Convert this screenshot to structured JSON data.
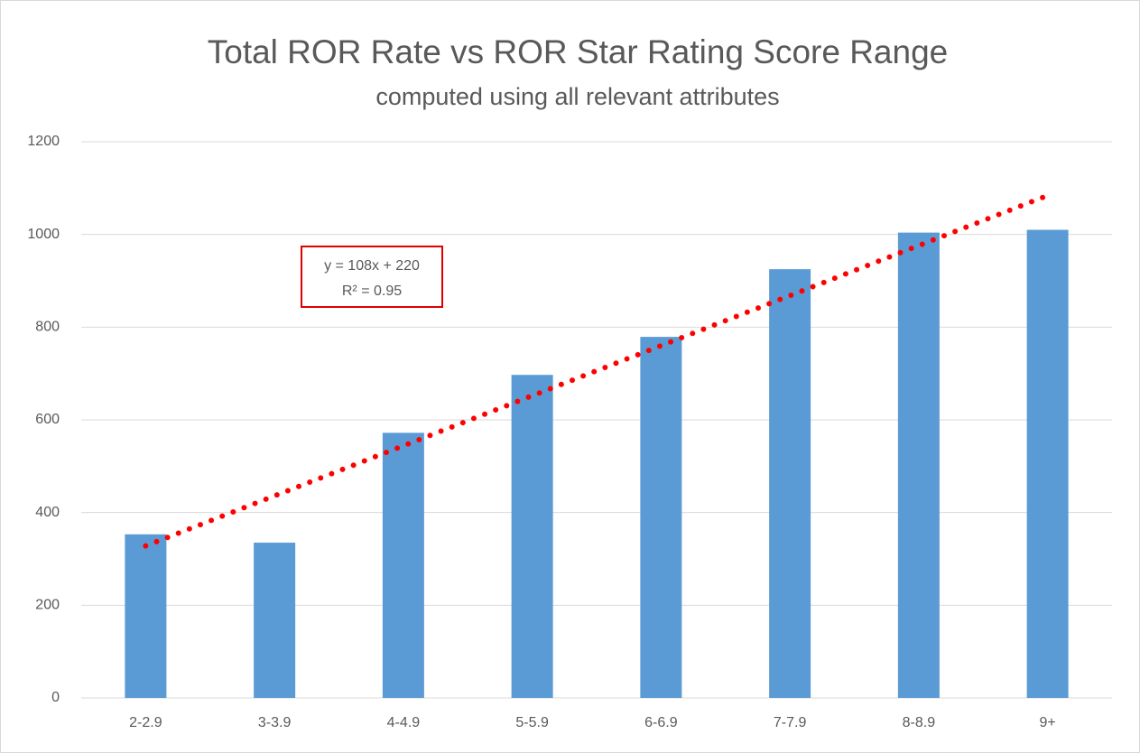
{
  "chart_data": {
    "type": "bar",
    "title": "Total ROR Rate vs ROR Star Rating Score Range",
    "subtitle": "computed using all relevant attributes",
    "categories": [
      "2-2.9",
      "3-3.9",
      "4-4.9",
      "5-5.9",
      "6-6.9",
      "7-7.9",
      "8-8.9",
      "9+"
    ],
    "values": [
      353,
      335,
      572,
      697,
      779,
      925,
      1004,
      1010
    ],
    "color": "#5b9bd5",
    "ylim": [
      0,
      1200
    ],
    "yticks": [
      0,
      200,
      400,
      600,
      800,
      1000,
      1200
    ],
    "grid": true,
    "trendline": {
      "equation": "y = 108x + 220",
      "r_squared": "R² = 0.95",
      "slope": 108,
      "intercept": 220,
      "color": "#ff0000"
    }
  }
}
